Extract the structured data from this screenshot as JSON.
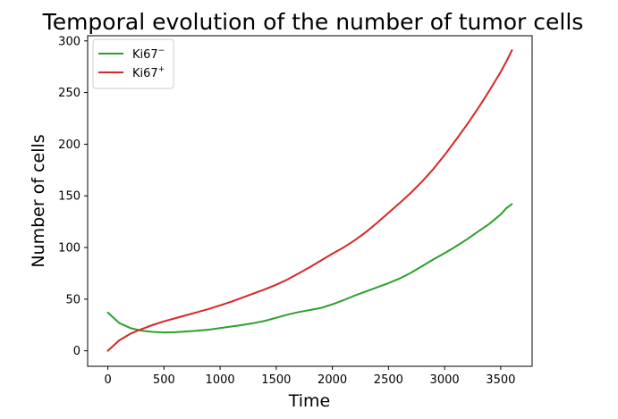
{
  "chart_data": {
    "type": "line",
    "title": "Temporal evolution of the number of tumor cells",
    "xlabel": "Time",
    "ylabel": "Number of cells",
    "xlim": [
      -180,
      3780
    ],
    "ylim": [
      -15,
      305
    ],
    "xticks": [
      0,
      500,
      1000,
      1500,
      2000,
      2500,
      3000,
      3500
    ],
    "yticks": [
      0,
      50,
      100,
      150,
      200,
      250,
      300
    ],
    "grid": false,
    "legend_position": "top-left",
    "series": [
      {
        "name": "Ki67⁻",
        "legend_base": "Ki67",
        "legend_sup": "−",
        "color": "#2ca02c",
        "x": [
          0,
          50,
          100,
          200,
          300,
          400,
          500,
          600,
          700,
          800,
          900,
          1000,
          1100,
          1200,
          1300,
          1400,
          1500,
          1600,
          1700,
          1800,
          1900,
          2000,
          2100,
          2200,
          2300,
          2400,
          2500,
          2600,
          2700,
          2800,
          2900,
          3000,
          3100,
          3200,
          3300,
          3400,
          3500,
          3550,
          3600
        ],
        "values": [
          37,
          32,
          27,
          22,
          19.5,
          18.3,
          17.8,
          18,
          18.7,
          19.5,
          20.5,
          22,
          23.5,
          25,
          26.8,
          29,
          32,
          35,
          37.5,
          39.5,
          41.5,
          45,
          49,
          53.5,
          57.5,
          61.5,
          65.5,
          70,
          75.5,
          82,
          88.5,
          94.5,
          101,
          108,
          115.5,
          123,
          132,
          138,
          142
        ]
      },
      {
        "name": "Ki67⁺",
        "legend_base": "Ki67",
        "legend_sup": "+",
        "color": "#d62728",
        "x": [
          0,
          50,
          100,
          200,
          300,
          400,
          500,
          600,
          700,
          800,
          900,
          1000,
          1100,
          1200,
          1300,
          1400,
          1500,
          1600,
          1700,
          1800,
          1900,
          2000,
          2100,
          2200,
          2300,
          2400,
          2500,
          2600,
          2700,
          2800,
          2900,
          3000,
          3100,
          3200,
          3300,
          3400,
          3500,
          3550,
          3600
        ],
        "values": [
          0,
          5,
          10,
          16.5,
          21,
          25,
          28.5,
          31.5,
          34.5,
          37.5,
          40.5,
          44,
          47.5,
          51.5,
          55.5,
          59.5,
          64,
          69,
          75,
          81,
          87.5,
          94,
          100,
          107,
          115,
          124,
          133.5,
          143,
          153,
          164,
          176,
          189.5,
          204,
          219,
          235,
          252,
          270,
          280,
          291
        ]
      }
    ]
  }
}
